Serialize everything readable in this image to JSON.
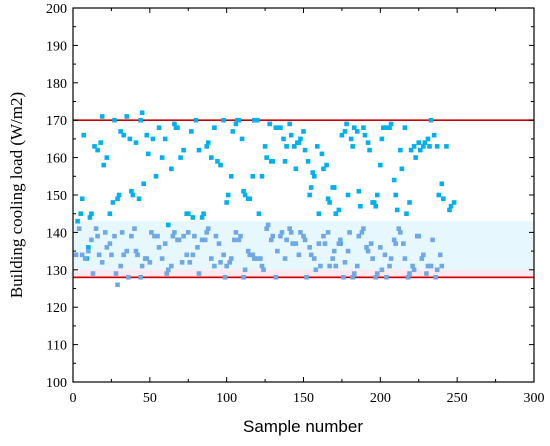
{
  "chart_data": {
    "type": "scatter",
    "title": "",
    "xlabel": "Sample number",
    "ylabel": "Building cooling load (W/m2)",
    "xlim": [
      0,
      300
    ],
    "ylim": [
      100,
      200
    ],
    "x_ticks": [
      "0",
      "50",
      "100",
      "150",
      "200",
      "250",
      "300"
    ],
    "y_ticks": [
      "100",
      "110",
      "120",
      "130",
      "140",
      "150",
      "160",
      "170",
      "180",
      "190",
      "200"
    ],
    "grid": false,
    "legend": "none",
    "marker_color": "#00b0f0",
    "marker_color_light": "#6fa8e6",
    "reference_lines": [
      {
        "y": 170,
        "color": "#cc0000"
      },
      {
        "y": 128,
        "color": "#cc0000"
      }
    ],
    "series": [
      {
        "color": "#00b0f0",
        "points": [
          [
            3,
            143
          ],
          [
            5,
            145
          ],
          [
            6,
            149
          ],
          [
            7,
            166
          ],
          [
            9,
            133
          ],
          [
            10,
            136
          ],
          [
            11,
            144
          ],
          [
            12,
            145
          ],
          [
            14,
            163
          ],
          [
            16,
            162
          ],
          [
            18,
            164
          ],
          [
            19,
            171
          ],
          [
            20,
            158
          ],
          [
            22,
            160
          ],
          [
            24,
            145
          ],
          [
            26,
            148
          ],
          [
            27,
            170
          ],
          [
            29,
            149
          ],
          [
            30,
            150
          ],
          [
            31,
            167
          ],
          [
            33,
            166
          ],
          [
            35,
            171
          ],
          [
            37,
            165
          ],
          [
            38,
            151
          ],
          [
            39,
            150
          ],
          [
            41,
            164
          ],
          [
            43,
            149
          ],
          [
            44,
            170
          ],
          [
            45,
            172
          ],
          [
            46,
            153
          ],
          [
            48,
            166
          ],
          [
            49,
            161
          ],
          [
            52,
            165
          ],
          [
            54,
            155
          ],
          [
            56,
            168
          ],
          [
            58,
            160
          ],
          [
            60,
            165
          ],
          [
            62,
            142
          ],
          [
            64,
            157
          ],
          [
            66,
            169
          ],
          [
            67,
            168
          ],
          [
            68,
            168
          ],
          [
            70,
            160
          ],
          [
            72,
            162
          ],
          [
            74,
            145
          ],
          [
            75,
            145
          ],
          [
            77,
            167
          ],
          [
            78,
            144
          ],
          [
            80,
            170
          ],
          [
            82,
            162
          ],
          [
            84,
            144
          ],
          [
            85,
            145
          ],
          [
            87,
            163
          ],
          [
            88,
            164
          ],
          [
            90,
            160
          ],
          [
            92,
            168
          ],
          [
            94,
            159
          ],
          [
            96,
            158
          ],
          [
            98,
            170
          ],
          [
            100,
            148
          ],
          [
            101,
            150
          ],
          [
            103,
            155
          ],
          [
            104,
            167
          ],
          [
            106,
            169
          ],
          [
            107,
            170
          ],
          [
            108,
            170
          ],
          [
            110,
            165
          ],
          [
            111,
            151
          ],
          [
            112,
            150
          ],
          [
            114,
            149
          ],
          [
            115,
            149
          ],
          [
            117,
            155
          ],
          [
            118,
            170
          ],
          [
            120,
            170
          ],
          [
            121,
            145
          ],
          [
            123,
            155
          ],
          [
            125,
            163
          ],
          [
            126,
            160
          ],
          [
            128,
            169
          ],
          [
            129,
            159
          ],
          [
            130,
            159
          ],
          [
            132,
            168
          ],
          [
            134,
            168
          ],
          [
            135,
            168
          ],
          [
            137,
            165
          ],
          [
            138,
            159
          ],
          [
            139,
            163
          ],
          [
            141,
            169
          ],
          [
            142,
            166
          ],
          [
            144,
            163
          ],
          [
            145,
            157
          ],
          [
            146,
            164
          ],
          [
            147,
            164
          ],
          [
            148,
            165
          ],
          [
            150,
            167
          ],
          [
            151,
            162
          ],
          [
            153,
            159
          ],
          [
            154,
            150
          ],
          [
            155,
            152
          ],
          [
            156,
            156
          ],
          [
            157,
            155
          ],
          [
            159,
            163
          ],
          [
            160,
            145
          ],
          [
            162,
            161
          ],
          [
            163,
            157
          ],
          [
            165,
            158
          ],
          [
            166,
            149
          ],
          [
            167,
            148
          ],
          [
            169,
            152
          ],
          [
            170,
            152
          ],
          [
            171,
            145
          ],
          [
            173,
            146
          ],
          [
            174,
            137
          ],
          [
            175,
            166
          ],
          [
            177,
            167
          ],
          [
            178,
            169
          ],
          [
            179,
            150
          ],
          [
            181,
            165
          ],
          [
            182,
            163
          ],
          [
            183,
            168
          ],
          [
            185,
            167
          ],
          [
            186,
            151
          ],
          [
            187,
            147
          ],
          [
            189,
            168
          ],
          [
            190,
            166
          ],
          [
            192,
            164
          ],
          [
            193,
            162
          ],
          [
            195,
            148
          ],
          [
            196,
            148
          ],
          [
            197,
            147
          ],
          [
            198,
            150
          ],
          [
            200,
            158
          ],
          [
            201,
            165
          ],
          [
            202,
            168
          ],
          [
            204,
            168
          ],
          [
            206,
            168
          ],
          [
            207,
            169
          ],
          [
            209,
            154
          ],
          [
            210,
            150
          ],
          [
            211,
            146
          ],
          [
            213,
            162
          ],
          [
            214,
            157
          ],
          [
            216,
            168
          ],
          [
            217,
            145
          ],
          [
            219,
            148
          ],
          [
            220,
            162
          ],
          [
            222,
            163
          ],
          [
            223,
            160
          ],
          [
            225,
            164
          ],
          [
            226,
            162
          ],
          [
            228,
            163
          ],
          [
            229,
            164
          ],
          [
            231,
            165
          ],
          [
            232,
            163
          ],
          [
            233,
            170
          ],
          [
            235,
            166
          ],
          [
            237,
            163
          ],
          [
            238,
            150
          ],
          [
            240,
            153
          ],
          [
            241,
            149
          ],
          [
            243,
            163
          ],
          [
            245,
            146
          ],
          [
            246,
            147
          ],
          [
            248,
            148
          ]
        ]
      },
      {
        "color": "#6fa8e6",
        "points": [
          [
            2,
            134
          ],
          [
            4,
            141
          ],
          [
            6,
            134
          ],
          [
            8,
            133
          ],
          [
            10,
            135
          ],
          [
            12,
            138
          ],
          [
            13,
            129
          ],
          [
            15,
            141
          ],
          [
            16,
            139
          ],
          [
            17,
            134
          ],
          [
            19,
            132
          ],
          [
            21,
            140
          ],
          [
            22,
            136
          ],
          [
            24,
            137
          ],
          [
            25,
            134
          ],
          [
            27,
            139
          ],
          [
            28,
            129
          ],
          [
            29,
            126
          ],
          [
            31,
            131
          ],
          [
            32,
            140
          ],
          [
            33,
            134
          ],
          [
            35,
            135
          ],
          [
            36,
            128
          ],
          [
            38,
            139
          ],
          [
            40,
            141
          ],
          [
            41,
            135
          ],
          [
            42,
            134
          ],
          [
            44,
            128
          ],
          [
            45,
            131
          ],
          [
            47,
            133
          ],
          [
            48,
            133
          ],
          [
            50,
            132
          ],
          [
            51,
            140
          ],
          [
            53,
            139
          ],
          [
            55,
            139
          ],
          [
            56,
            136
          ],
          [
            58,
            133
          ],
          [
            60,
            137
          ],
          [
            61,
            129
          ],
          [
            62,
            130
          ],
          [
            64,
            131
          ],
          [
            65,
            139
          ],
          [
            66,
            140
          ],
          [
            68,
            138
          ],
          [
            69,
            138
          ],
          [
            71,
            132
          ],
          [
            72,
            139
          ],
          [
            74,
            134
          ],
          [
            75,
            140
          ],
          [
            76,
            132
          ],
          [
            78,
            134
          ],
          [
            79,
            139
          ],
          [
            81,
            136
          ],
          [
            82,
            129
          ],
          [
            84,
            138
          ],
          [
            86,
            138
          ],
          [
            87,
            140
          ],
          [
            88,
            141
          ],
          [
            90,
            133
          ],
          [
            92,
            131
          ],
          [
            93,
            139
          ],
          [
            95,
            137
          ],
          [
            96,
            132
          ],
          [
            98,
            134
          ],
          [
            99,
            128
          ],
          [
            100,
            131
          ],
          [
            102,
            132
          ],
          [
            103,
            133
          ],
          [
            105,
            138
          ],
          [
            106,
            140
          ],
          [
            108,
            138
          ],
          [
            109,
            139
          ],
          [
            111,
            128
          ],
          [
            112,
            130
          ],
          [
            114,
            135
          ],
          [
            115,
            134
          ],
          [
            117,
            134
          ],
          [
            118,
            133
          ],
          [
            120,
            133
          ],
          [
            122,
            133
          ],
          [
            123,
            131
          ],
          [
            124,
            130
          ],
          [
            126,
            141
          ],
          [
            127,
            142
          ],
          [
            129,
            138
          ],
          [
            130,
            139
          ],
          [
            132,
            128
          ],
          [
            133,
            135
          ],
          [
            135,
            139
          ],
          [
            136,
            140
          ],
          [
            138,
            133
          ],
          [
            139,
            138
          ],
          [
            141,
            141
          ],
          [
            142,
            140
          ],
          [
            143,
            137
          ],
          [
            145,
            137
          ],
          [
            147,
            134
          ],
          [
            148,
            140
          ],
          [
            150,
            139
          ],
          [
            151,
            138
          ],
          [
            152,
            128
          ],
          [
            154,
            136
          ],
          [
            155,
            134
          ],
          [
            157,
            133
          ],
          [
            158,
            130
          ],
          [
            160,
            137
          ],
          [
            161,
            131
          ],
          [
            163,
            139
          ],
          [
            164,
            137
          ],
          [
            166,
            140
          ],
          [
            167,
            131
          ],
          [
            169,
            133
          ],
          [
            170,
            135
          ],
          [
            171,
            131
          ],
          [
            173,
            137
          ],
          [
            174,
            138
          ],
          [
            176,
            128
          ],
          [
            177,
            132
          ],
          [
            179,
            135
          ],
          [
            180,
            140
          ],
          [
            182,
            128
          ],
          [
            183,
            129
          ],
          [
            185,
            131
          ],
          [
            186,
            139
          ],
          [
            188,
            140
          ],
          [
            189,
            141
          ],
          [
            191,
            136
          ],
          [
            192,
            135
          ],
          [
            194,
            137
          ],
          [
            195,
            133
          ],
          [
            197,
            128
          ],
          [
            198,
            129
          ],
          [
            200,
            136
          ],
          [
            201,
            130
          ],
          [
            203,
            134
          ],
          [
            204,
            128
          ],
          [
            206,
            131
          ],
          [
            207,
            133
          ],
          [
            209,
            138
          ],
          [
            210,
            137
          ],
          [
            212,
            141
          ],
          [
            213,
            140
          ],
          [
            215,
            137
          ],
          [
            216,
            133
          ],
          [
            218,
            128
          ],
          [
            219,
            129
          ],
          [
            221,
            131
          ],
          [
            222,
            130
          ],
          [
            224,
            139
          ],
          [
            225,
            139
          ],
          [
            227,
            133
          ],
          [
            228,
            134
          ],
          [
            230,
            129
          ],
          [
            231,
            131
          ],
          [
            233,
            131
          ],
          [
            234,
            138
          ],
          [
            236,
            128
          ],
          [
            237,
            130
          ],
          [
            239,
            134
          ],
          [
            240,
            131
          ]
        ]
      }
    ]
  }
}
